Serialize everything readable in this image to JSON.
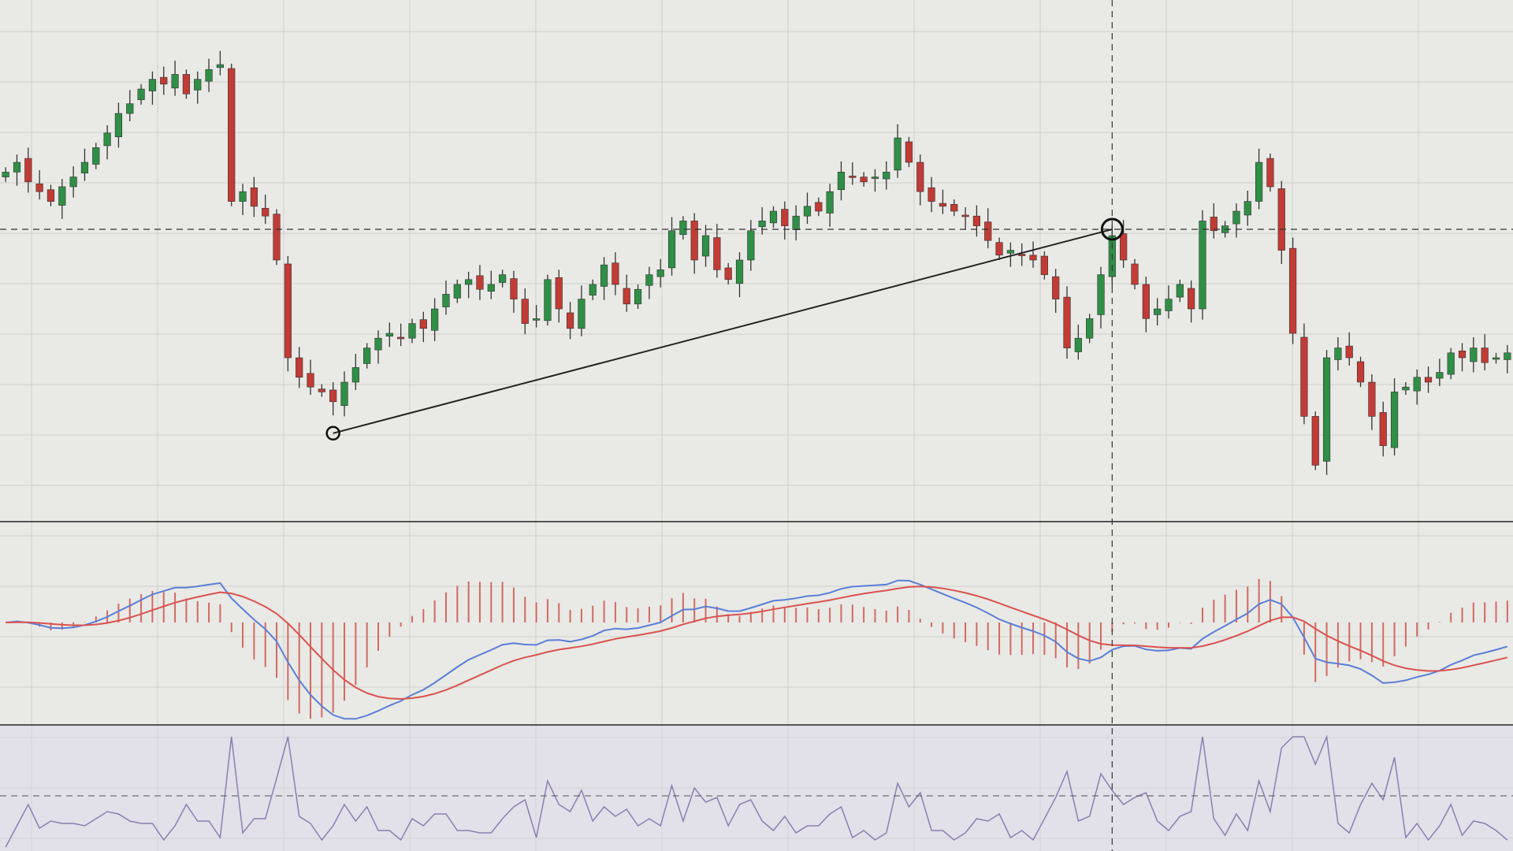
{
  "chart_data": {
    "type": "candlestick",
    "panels": [
      "price",
      "macd",
      "oscillator"
    ],
    "grid": true,
    "closes": [
      78,
      80,
      76,
      74,
      72,
      75,
      77,
      80,
      83,
      86,
      90,
      92,
      95,
      97,
      96,
      98,
      94,
      97,
      99,
      100,
      72,
      74,
      71,
      69,
      60,
      40,
      36,
      34,
      33,
      31,
      35,
      38,
      42,
      44,
      45,
      44,
      47,
      46,
      50,
      53,
      55,
      56,
      54,
      55,
      57,
      52,
      47,
      48,
      56,
      50,
      46,
      52,
      55,
      59,
      55,
      51,
      54,
      57,
      58,
      66,
      68,
      60,
      65,
      58,
      56,
      60,
      66,
      68,
      70,
      67,
      69,
      71,
      70,
      74,
      78,
      77,
      76,
      77,
      78,
      85,
      80,
      74,
      72,
      71,
      70,
      69,
      67,
      64,
      61,
      62,
      61,
      60,
      57,
      52,
      42,
      44,
      48,
      57,
      65,
      60,
      55,
      48,
      50,
      52,
      55,
      50,
      68,
      66,
      67,
      70,
      72,
      80,
      75,
      62,
      45,
      28,
      18,
      40,
      42,
      40,
      35,
      28,
      22,
      33,
      34,
      36,
      35,
      37,
      41,
      40,
      42,
      39,
      40,
      41
    ],
    "trendline": {
      "from_index": 29,
      "to_index": 98
    },
    "crosshair_index": 98,
    "colors": {
      "background": "#e9e9e6",
      "grid": "#cfcfcb",
      "up": "#2f8f46",
      "down": "#c23b35",
      "wick": "#333333",
      "macd_line": "#5b7fd6",
      "signal_line": "#d9534f",
      "histogram": "#d06a62",
      "oscillator": "#8c7fb0"
    }
  }
}
